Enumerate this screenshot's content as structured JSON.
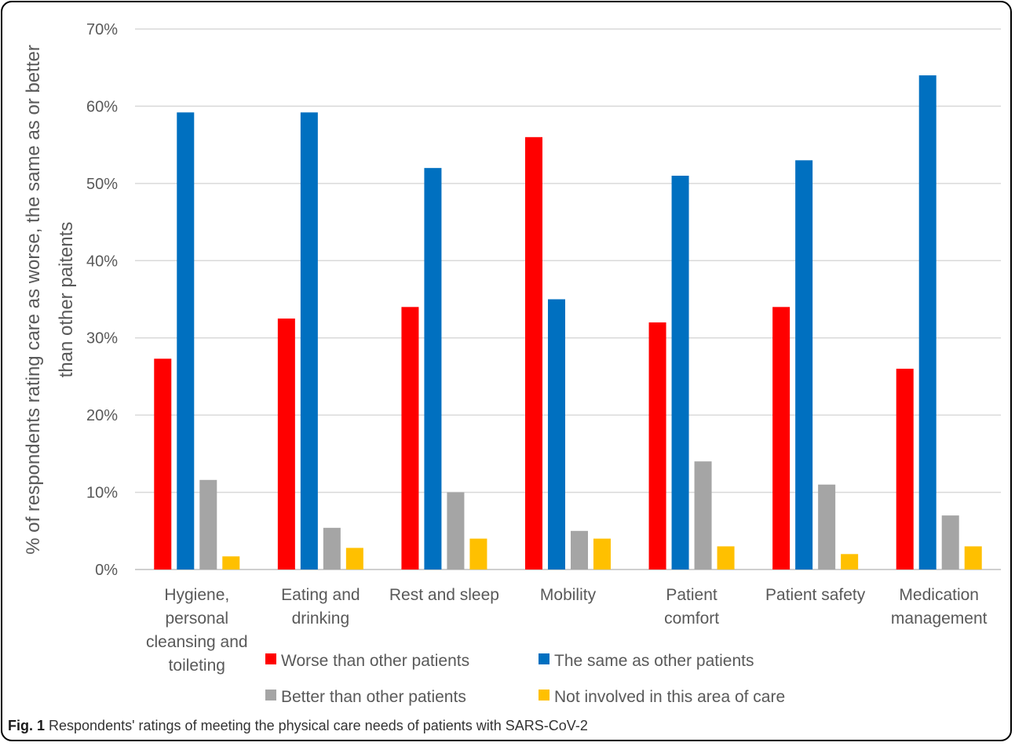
{
  "chart_data": {
    "type": "bar",
    "ylabel_lines": [
      "% of respondents rating care as worse, the same as or better",
      "than other paitents"
    ],
    "ylim": [
      0,
      70
    ],
    "yticks": [
      "0%",
      "10%",
      "20%",
      "30%",
      "40%",
      "50%",
      "60%",
      "70%"
    ],
    "grid": true,
    "legend_position": "bottom",
    "categories": [
      [
        "Hygiene,",
        "personal",
        "cleansing and",
        "toileting"
      ],
      [
        "Eating and",
        "drinking"
      ],
      [
        "Rest and sleep"
      ],
      [
        "Mobility"
      ],
      [
        "Patient",
        "comfort"
      ],
      [
        "Patient safety"
      ],
      [
        "Medication",
        "management"
      ]
    ],
    "series": [
      {
        "name": "Worse than other patients",
        "color": "#ff0000",
        "values": [
          27.3,
          32.5,
          34,
          56,
          32,
          34,
          26
        ]
      },
      {
        "name": "The same as other patients",
        "color": "#0070c0",
        "values": [
          59.2,
          59.2,
          52,
          35,
          51,
          53,
          64
        ]
      },
      {
        "name": "Better than other patients",
        "color": "#a5a5a5",
        "values": [
          11.6,
          5.4,
          10,
          5,
          14,
          11,
          7
        ]
      },
      {
        "name": "Not involved in this area of care",
        "color": "#ffc000",
        "values": [
          1.7,
          2.8,
          4,
          4,
          3,
          2,
          3
        ]
      }
    ]
  },
  "caption": {
    "label": "Fig. 1",
    "text": " Respondents' ratings of meeting the physical care needs of patients with SARS-CoV-2"
  }
}
